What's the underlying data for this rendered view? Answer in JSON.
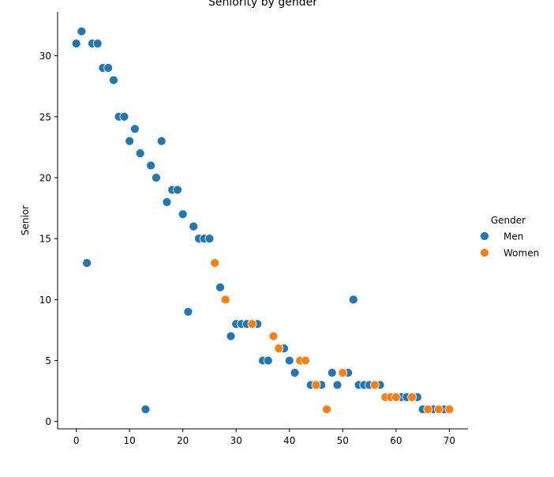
{
  "chart_data": {
    "type": "scatter",
    "title": "Seniority by gender",
    "xlabel": "",
    "ylabel": "Senior",
    "xlim": [
      -3.5,
      73.5
    ],
    "ylim": [
      -0.6,
      33.6
    ],
    "xticks": [
      0,
      10,
      20,
      30,
      40,
      50,
      60,
      70
    ],
    "yticks": [
      0,
      5,
      10,
      15,
      20,
      25,
      30
    ],
    "grid": false,
    "legend": {
      "title": "Gender",
      "placement": "center-right"
    },
    "series": [
      {
        "name": "Men",
        "color": "#1f77b4",
        "points": [
          [
            0,
            31
          ],
          [
            1,
            32
          ],
          [
            2,
            13
          ],
          [
            3,
            31
          ],
          [
            4,
            31
          ],
          [
            5,
            29
          ],
          [
            6,
            29
          ],
          [
            7,
            28
          ],
          [
            8,
            25
          ],
          [
            9,
            25
          ],
          [
            10,
            23
          ],
          [
            11,
            24
          ],
          [
            12,
            22
          ],
          [
            13,
            1
          ],
          [
            14,
            21
          ],
          [
            15,
            20
          ],
          [
            16,
            23
          ],
          [
            17,
            18
          ],
          [
            18,
            19
          ],
          [
            19,
            19
          ],
          [
            20,
            17
          ],
          [
            21,
            9
          ],
          [
            22,
            16
          ],
          [
            23,
            15
          ],
          [
            24,
            15
          ],
          [
            25,
            15
          ],
          [
            27,
            11
          ],
          [
            29,
            7
          ],
          [
            30,
            8
          ],
          [
            31,
            8
          ],
          [
            32,
            8
          ],
          [
            34,
            8
          ],
          [
            35,
            5
          ],
          [
            36,
            5
          ],
          [
            39,
            6
          ],
          [
            40,
            5
          ],
          [
            41,
            4
          ],
          [
            44,
            3
          ],
          [
            46,
            3
          ],
          [
            48,
            4
          ],
          [
            49,
            3
          ],
          [
            51,
            4
          ],
          [
            52,
            10
          ],
          [
            53,
            3
          ],
          [
            54,
            3
          ],
          [
            55,
            3
          ],
          [
            57,
            3
          ],
          [
            61,
            2
          ],
          [
            62,
            2
          ],
          [
            64,
            2
          ],
          [
            65,
            1
          ],
          [
            67,
            1
          ],
          [
            69,
            1
          ]
        ]
      },
      {
        "name": "Women",
        "color": "#ff7f0e",
        "points": [
          [
            26,
            13
          ],
          [
            28,
            10
          ],
          [
            33,
            8
          ],
          [
            37,
            7
          ],
          [
            38,
            6
          ],
          [
            42,
            5
          ],
          [
            43,
            5
          ],
          [
            45,
            3
          ],
          [
            47,
            1
          ],
          [
            50,
            4
          ],
          [
            56,
            3
          ],
          [
            58,
            2
          ],
          [
            59,
            2
          ],
          [
            60,
            2
          ],
          [
            63,
            2
          ],
          [
            66,
            1
          ],
          [
            68,
            1
          ],
          [
            70,
            1
          ]
        ]
      }
    ]
  }
}
